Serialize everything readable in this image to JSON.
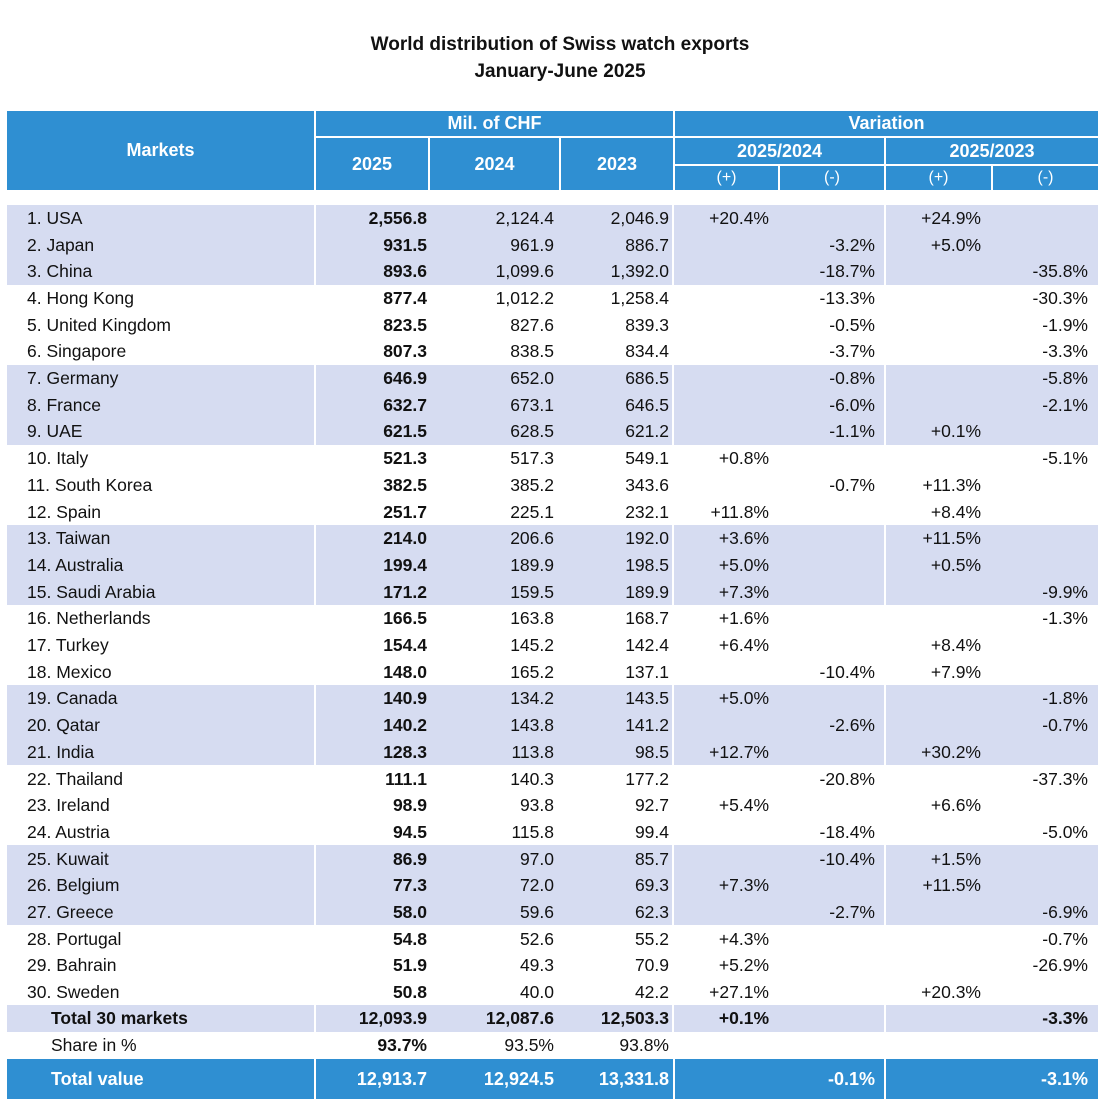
{
  "title": {
    "line1": "World distribution of Swiss watch exports",
    "line2": "January-June 2025"
  },
  "header": {
    "markets": "Markets",
    "mil_chf": "Mil. of CHF",
    "variation": "Variation",
    "y2025": "2025",
    "y2024": "2024",
    "y2023": "2023",
    "v2025_2024": "2025/2024",
    "v2025_2023": "2025/2023",
    "plus": "(+)",
    "minus": "(-)"
  },
  "rows": [
    {
      "market": "1. USA",
      "v2025": "2,556.8",
      "v2024": "2,124.4",
      "v2023": "2,046.9",
      "p1": "+20.4%",
      "m1": "",
      "p2": "+24.9%",
      "m2": ""
    },
    {
      "market": "2. Japan",
      "v2025": "931.5",
      "v2024": "961.9",
      "v2023": "886.7",
      "p1": "",
      "m1": "-3.2%",
      "p2": "+5.0%",
      "m2": ""
    },
    {
      "market": "3. China",
      "v2025": "893.6",
      "v2024": "1,099.6",
      "v2023": "1,392.0",
      "p1": "",
      "m1": "-18.7%",
      "p2": "",
      "m2": "-35.8%"
    },
    {
      "market": "4. Hong Kong",
      "v2025": "877.4",
      "v2024": "1,012.2",
      "v2023": "1,258.4",
      "p1": "",
      "m1": "-13.3%",
      "p2": "",
      "m2": "-30.3%"
    },
    {
      "market": "5. United Kingdom",
      "v2025": "823.5",
      "v2024": "827.6",
      "v2023": "839.3",
      "p1": "",
      "m1": "-0.5%",
      "p2": "",
      "m2": "-1.9%"
    },
    {
      "market": "6. Singapore",
      "v2025": "807.3",
      "v2024": "838.5",
      "v2023": "834.4",
      "p1": "",
      "m1": "-3.7%",
      "p2": "",
      "m2": "-3.3%"
    },
    {
      "market": "7. Germany",
      "v2025": "646.9",
      "v2024": "652.0",
      "v2023": "686.5",
      "p1": "",
      "m1": "-0.8%",
      "p2": "",
      "m2": "-5.8%"
    },
    {
      "market": "8. France",
      "v2025": "632.7",
      "v2024": "673.1",
      "v2023": "646.5",
      "p1": "",
      "m1": "-6.0%",
      "p2": "",
      "m2": "-2.1%"
    },
    {
      "market": "9. UAE",
      "v2025": "621.5",
      "v2024": "628.5",
      "v2023": "621.2",
      "p1": "",
      "m1": "-1.1%",
      "p2": "+0.1%",
      "m2": ""
    },
    {
      "market": "10. Italy",
      "v2025": "521.3",
      "v2024": "517.3",
      "v2023": "549.1",
      "p1": "+0.8%",
      "m1": "",
      "p2": "",
      "m2": "-5.1%"
    },
    {
      "market": "11. South Korea",
      "v2025": "382.5",
      "v2024": "385.2",
      "v2023": "343.6",
      "p1": "",
      "m1": "-0.7%",
      "p2": "+11.3%",
      "m2": ""
    },
    {
      "market": "12. Spain",
      "v2025": "251.7",
      "v2024": "225.1",
      "v2023": "232.1",
      "p1": "+11.8%",
      "m1": "",
      "p2": "+8.4%",
      "m2": ""
    },
    {
      "market": "13. Taiwan",
      "v2025": "214.0",
      "v2024": "206.6",
      "v2023": "192.0",
      "p1": "+3.6%",
      "m1": "",
      "p2": "+11.5%",
      "m2": ""
    },
    {
      "market": "14. Australia",
      "v2025": "199.4",
      "v2024": "189.9",
      "v2023": "198.5",
      "p1": "+5.0%",
      "m1": "",
      "p2": "+0.5%",
      "m2": ""
    },
    {
      "market": "15. Saudi Arabia",
      "v2025": "171.2",
      "v2024": "159.5",
      "v2023": "189.9",
      "p1": "+7.3%",
      "m1": "",
      "p2": "",
      "m2": "-9.9%"
    },
    {
      "market": "16. Netherlands",
      "v2025": "166.5",
      "v2024": "163.8",
      "v2023": "168.7",
      "p1": "+1.6%",
      "m1": "",
      "p2": "",
      "m2": "-1.3%"
    },
    {
      "market": "17. Turkey",
      "v2025": "154.4",
      "v2024": "145.2",
      "v2023": "142.4",
      "p1": "+6.4%",
      "m1": "",
      "p2": "+8.4%",
      "m2": ""
    },
    {
      "market": "18. Mexico",
      "v2025": "148.0",
      "v2024": "165.2",
      "v2023": "137.1",
      "p1": "",
      "m1": "-10.4%",
      "p2": "+7.9%",
      "m2": ""
    },
    {
      "market": "19. Canada",
      "v2025": "140.9",
      "v2024": "134.2",
      "v2023": "143.5",
      "p1": "+5.0%",
      "m1": "",
      "p2": "",
      "m2": "-1.8%"
    },
    {
      "market": "20. Qatar",
      "v2025": "140.2",
      "v2024": "143.8",
      "v2023": "141.2",
      "p1": "",
      "m1": "-2.6%",
      "p2": "",
      "m2": "-0.7%"
    },
    {
      "market": "21. India",
      "v2025": "128.3",
      "v2024": "113.8",
      "v2023": "98.5",
      "p1": "+12.7%",
      "m1": "",
      "p2": "+30.2%",
      "m2": ""
    },
    {
      "market": "22. Thailand",
      "v2025": "111.1",
      "v2024": "140.3",
      "v2023": "177.2",
      "p1": "",
      "m1": "-20.8%",
      "p2": "",
      "m2": "-37.3%"
    },
    {
      "market": "23. Ireland",
      "v2025": "98.9",
      "v2024": "93.8",
      "v2023": "92.7",
      "p1": "+5.4%",
      "m1": "",
      "p2": "+6.6%",
      "m2": ""
    },
    {
      "market": "24. Austria",
      "v2025": "94.5",
      "v2024": "115.8",
      "v2023": "99.4",
      "p1": "",
      "m1": "-18.4%",
      "p2": "",
      "m2": "-5.0%"
    },
    {
      "market": "25. Kuwait",
      "v2025": "86.9",
      "v2024": "97.0",
      "v2023": "85.7",
      "p1": "",
      "m1": "-10.4%",
      "p2": "+1.5%",
      "m2": ""
    },
    {
      "market": "26. Belgium",
      "v2025": "77.3",
      "v2024": "72.0",
      "v2023": "69.3",
      "p1": "+7.3%",
      "m1": "",
      "p2": "+11.5%",
      "m2": ""
    },
    {
      "market": "27. Greece",
      "v2025": "58.0",
      "v2024": "59.6",
      "v2023": "62.3",
      "p1": "",
      "m1": "-2.7%",
      "p2": "",
      "m2": "-6.9%"
    },
    {
      "market": "28. Portugal",
      "v2025": "54.8",
      "v2024": "52.6",
      "v2023": "55.2",
      "p1": "+4.3%",
      "m1": "",
      "p2": "",
      "m2": "-0.7%"
    },
    {
      "market": "29. Bahrain",
      "v2025": "51.9",
      "v2024": "49.3",
      "v2023": "70.9",
      "p1": "+5.2%",
      "m1": "",
      "p2": "",
      "m2": "-26.9%"
    },
    {
      "market": "30. Sweden",
      "v2025": "50.8",
      "v2024": "40.0",
      "v2023": "42.2",
      "p1": "+27.1%",
      "m1": "",
      "p2": "+20.3%",
      "m2": ""
    }
  ],
  "total30": {
    "market": "Total 30 markets",
    "v2025": "12,093.9",
    "v2024": "12,087.6",
    "v2023": "12,503.3",
    "p1": "+0.1%",
    "m1": "",
    "p2": "",
    "m2": "-3.3%"
  },
  "share": {
    "market": "Share in %",
    "v2025": "93.7%",
    "v2024": "93.5%",
    "v2023": "93.8%"
  },
  "total_value": {
    "market": "Total value",
    "v2025": "12,913.7",
    "v2024": "12,924.5",
    "v2023": "13,331.8",
    "var1": "-0.1%",
    "var2": "-3.1%"
  },
  "colors": {
    "header_blue": "#2f8fd2",
    "band_lavender": "#d6dcf1"
  }
}
